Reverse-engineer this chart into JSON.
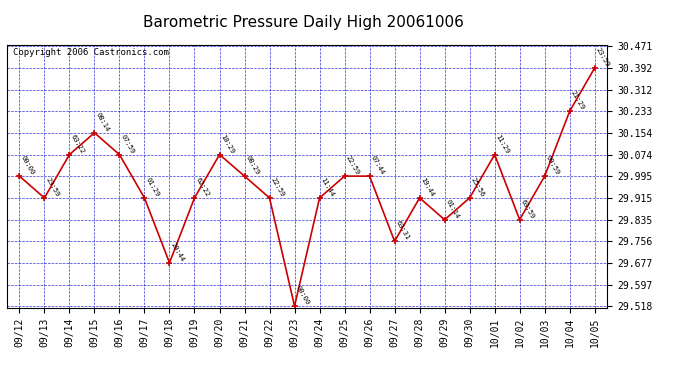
{
  "title": "Barometric Pressure Daily High 20061006",
  "copyright": "Copyright 2006 Castronics.com",
  "x_labels": [
    "09/12",
    "09/13",
    "09/14",
    "09/15",
    "09/16",
    "09/17",
    "09/18",
    "09/19",
    "09/20",
    "09/21",
    "09/22",
    "09/23",
    "09/24",
    "09/25",
    "09/26",
    "09/27",
    "09/28",
    "09/29",
    "09/30",
    "10/01",
    "10/02",
    "10/03",
    "10/04",
    "10/05"
  ],
  "y_values": [
    29.995,
    29.915,
    30.074,
    30.154,
    30.074,
    29.915,
    29.677,
    29.915,
    30.074,
    29.995,
    29.915,
    29.518,
    29.915,
    29.995,
    29.995,
    29.756,
    29.915,
    29.835,
    29.915,
    30.074,
    29.835,
    29.995,
    30.233,
    30.392
  ],
  "point_labels": [
    "00:00",
    "23:59",
    "63:22",
    "08:14",
    "07:59",
    "01:29",
    "20:44",
    "62:22",
    "10:29",
    "08:29",
    "22:59",
    "00:00",
    "11:44",
    "22:59",
    "07:44",
    "63:31",
    "19:44",
    "01:14",
    "25:56",
    "11:29",
    "63:59",
    "09:59",
    "21:29",
    "23:59"
  ],
  "y_min": 29.518,
  "y_max": 30.471,
  "y_ticks": [
    29.518,
    29.597,
    29.677,
    29.756,
    29.835,
    29.915,
    29.995,
    30.074,
    30.154,
    30.233,
    30.312,
    30.392,
    30.471
  ],
  "line_color": "#cc0000",
  "marker_color": "#cc0000",
  "grid_color": "#0000cc",
  "background_color": "#ffffff",
  "plot_bg_color": "#ffffff",
  "title_fontsize": 11,
  "tick_fontsize": 7,
  "copyright_fontsize": 6.5
}
